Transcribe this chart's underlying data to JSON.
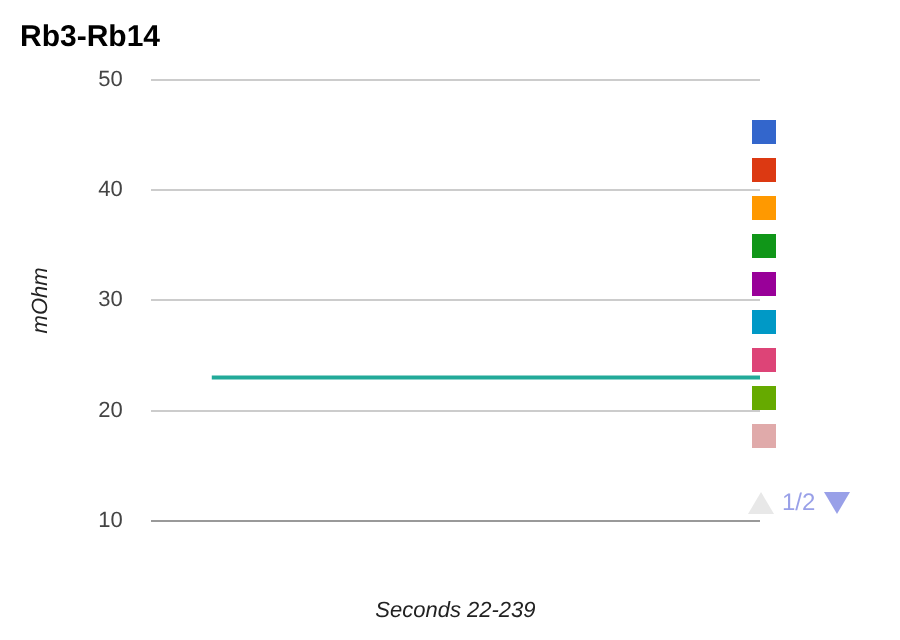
{
  "chart_data": {
    "type": "line",
    "title": "Rb3-Rb14",
    "xlabel": "Seconds 22-239",
    "ylabel": "mOhm",
    "categories": [
      null,
      null,
      null,
      null,
      null,
      null,
      null,
      null,
      null,
      null,
      null
    ],
    "series": [
      {
        "color": "#22aa99",
        "values": [
          null,
          23,
          23,
          23,
          23,
          23,
          23,
          23,
          23,
          23,
          23
        ]
      }
    ],
    "ylim": [
      10,
      50
    ],
    "yticks": [
      10,
      20,
      30,
      40,
      50
    ],
    "grid": "y",
    "marker": "none",
    "line_style": "solid",
    "annotations": [
      "1/2"
    ]
  }
}
